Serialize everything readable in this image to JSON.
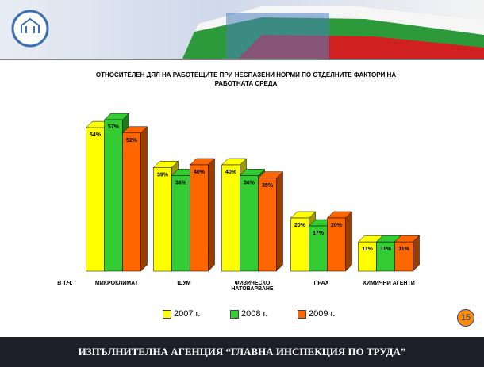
{
  "chart_data": {
    "type": "bar3d",
    "title": "ОТНОСИТЕЛЕН ДЯЛ НА РАБОТЕЩИТЕ ПРИ НЕСПАЗЕНИ НОРМИ ПО ОТДЕЛНИТЕ ФАКТОРИ НА РАБОТНАТА СРЕДА",
    "prefix_label": "В Т.Ч. :",
    "categories": [
      "МИКРОКЛИМАТ",
      "ШУМ",
      "ФИЗИЧЕСКО НАТОВАРВАНЕ",
      "ПРАХ",
      "ХИМИЧНИ АГЕНТИ"
    ],
    "ylim": [
      0,
      60
    ],
    "series": [
      {
        "name": "2007 г.",
        "color": "#ffff00",
        "side": "#9a9a00",
        "values": [
          54,
          39,
          40,
          20,
          11
        ],
        "value_labels": [
          "54%",
          "39%",
          "40%",
          "20%",
          "11%"
        ]
      },
      {
        "name": "2008 г.",
        "color": "#33cc33",
        "side": "#1c7a1c",
        "values": [
          57,
          36,
          36,
          17,
          11
        ],
        "value_labels": [
          "57%",
          "36%",
          "36%",
          "17%",
          "11%"
        ]
      },
      {
        "name": "2009 г.",
        "color": "#ff6600",
        "side": "#9a3d00",
        "values": [
          52,
          40,
          35,
          20,
          11
        ],
        "value_labels": [
          "52%",
          "40%",
          "35%",
          "20%",
          "11%"
        ]
      }
    ]
  },
  "page_number": "15",
  "footer": "ИЗПЪЛНИТЕЛНА АГЕНЦИЯ “ГЛАВНА ИНСПЕКЦИЯ ПО ТРУДА”"
}
